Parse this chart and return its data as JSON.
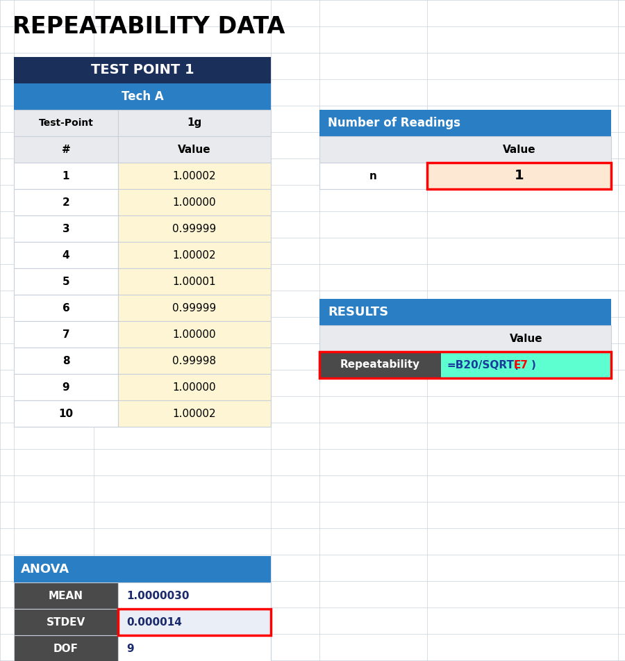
{
  "title": "REPEATABILITY DATA",
  "title_fontsize": 24,
  "title_fontweight": "bold",
  "title_color": "#000000",
  "bg_color": "#ffffff",
  "grid_line_color": "#c8d0dc",
  "header_dark_blue": "#1a2f5a",
  "header_mid_blue": "#2a7ec4",
  "cell_yellow": "#fdf5d3",
  "cell_peach": "#fde8d4",
  "cell_dark_gray": "#4a4a4a",
  "cell_light_gray": "#eaeef6",
  "cell_header_gray": "#e8eaed",
  "cell_cyan": "#5dffd0",
  "test_point_header": "TEST POINT 1",
  "tech_header": "Tech A",
  "col2_header": "1g",
  "row_numbers": [
    "#",
    "1",
    "2",
    "3",
    "4",
    "5",
    "6",
    "7",
    "8",
    "9",
    "10"
  ],
  "row_labels": [
    "Value",
    "1.00002",
    "1.00000",
    "0.99999",
    "1.00002",
    "1.00001",
    "0.99999",
    "1.00000",
    "0.99998",
    "1.00000",
    "1.00002"
  ],
  "test_point_label": "Test-Point",
  "nor_header": "Number of Readings",
  "nor_value_label": "Value",
  "nor_row_label": "n",
  "nor_value": "1",
  "results_header": "RESULTS",
  "results_value_label": "Value",
  "results_row_label": "Repeatability",
  "results_formula": "=B20/SQRT(E7)",
  "anova_header": "ANOVA",
  "anova_rows": [
    "MEAN",
    "STDEV",
    "DOF"
  ],
  "anova_values": [
    "1.0000030",
    "0.000014",
    "9"
  ]
}
